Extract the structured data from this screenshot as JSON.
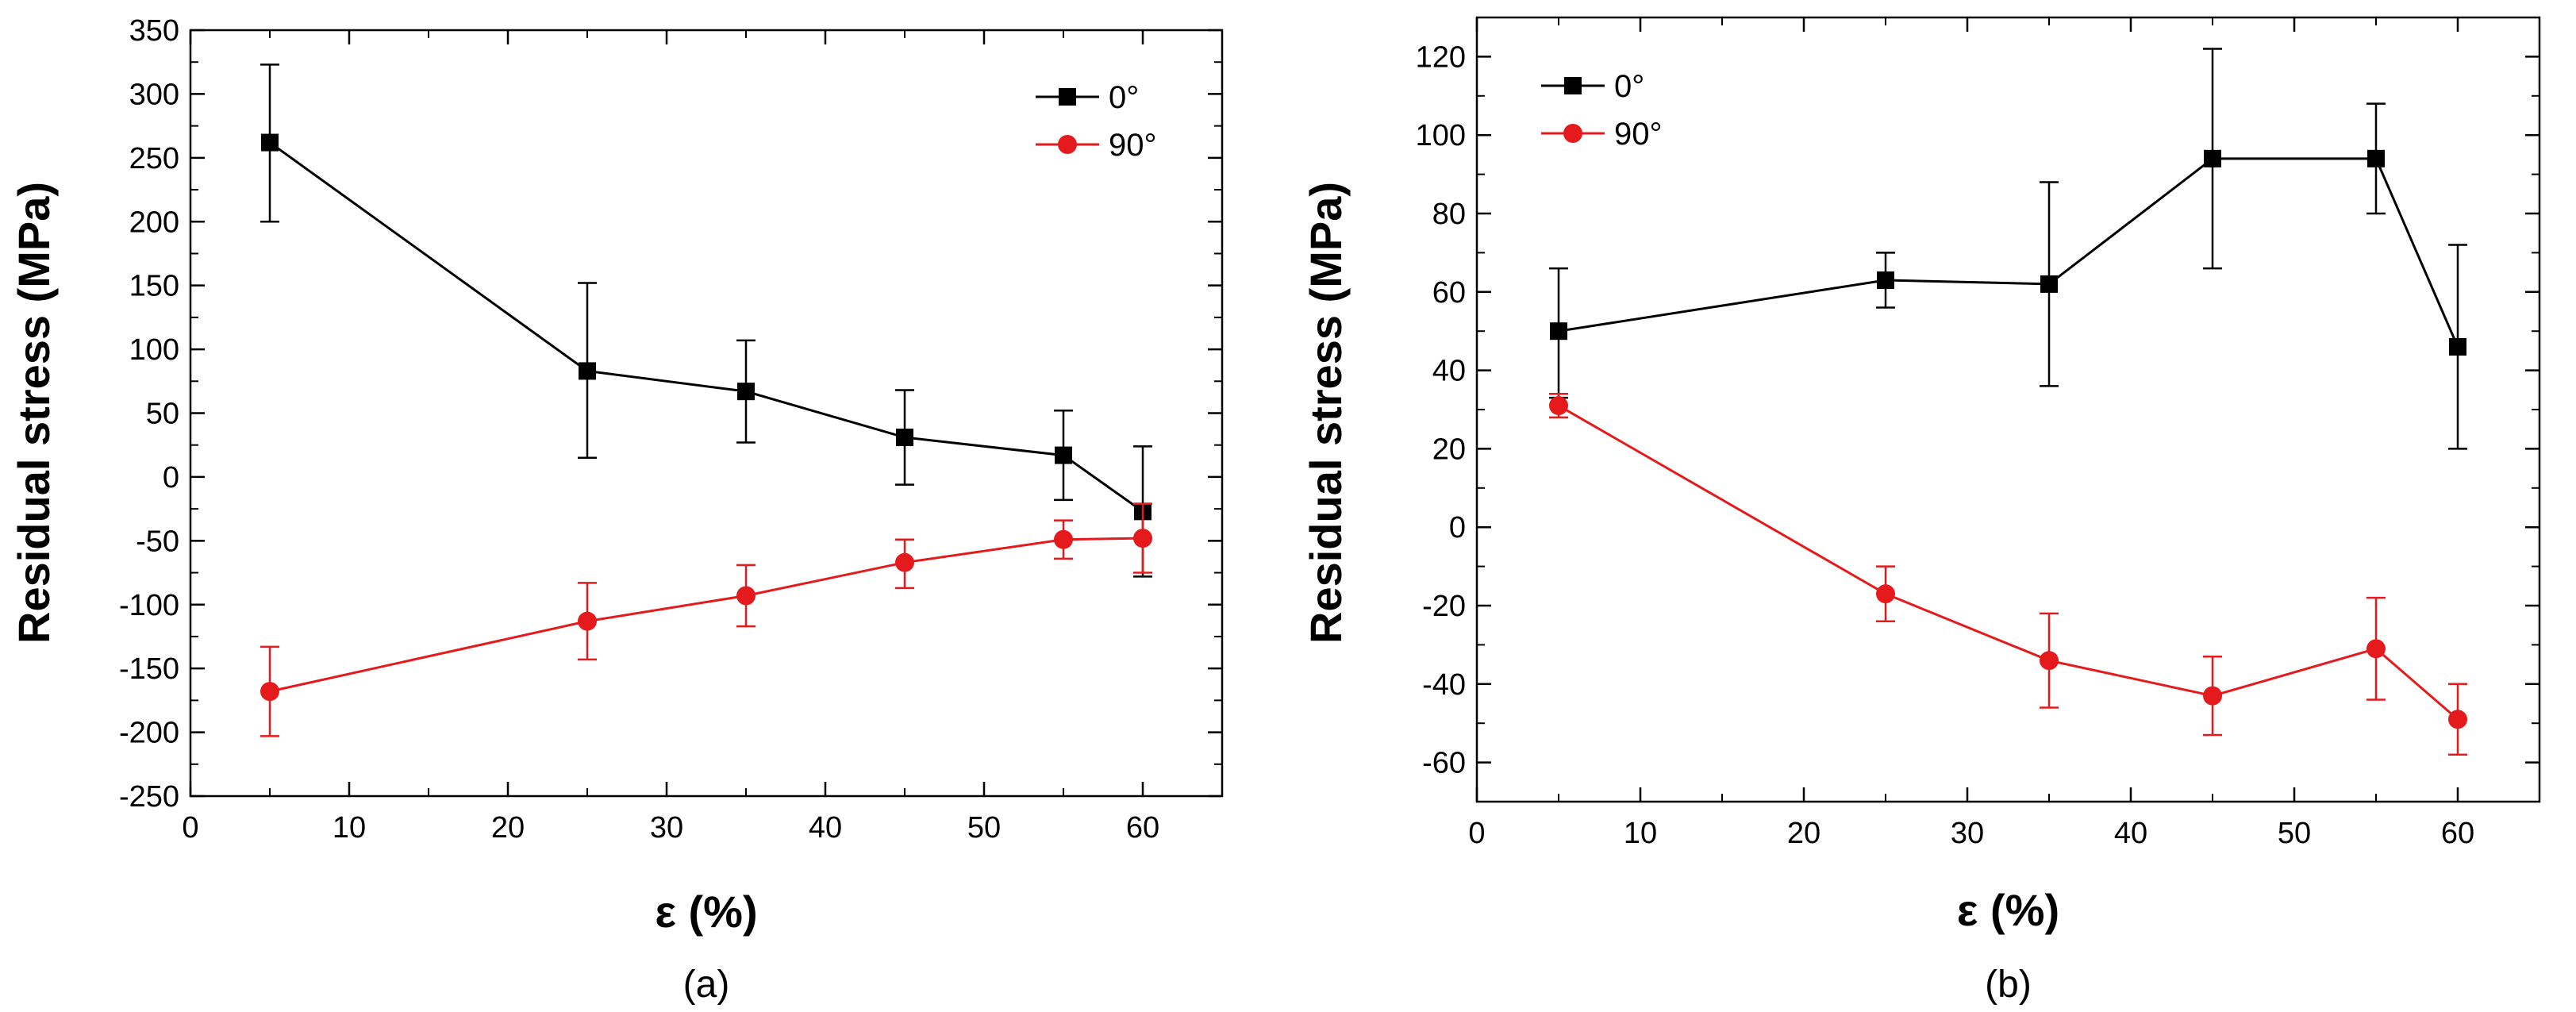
{
  "chart_data": [
    {
      "type": "line",
      "panel_label": "(a)",
      "xlabel": "ε (%)",
      "ylabel": "Residual stress (MPa)",
      "xlim": [
        0,
        65
      ],
      "ylim": [
        -250,
        350
      ],
      "xticks": [
        0,
        10,
        20,
        30,
        40,
        50,
        60
      ],
      "yticks": [
        -250,
        -200,
        -150,
        -100,
        -50,
        0,
        50,
        100,
        150,
        200,
        250,
        300,
        350
      ],
      "legend_position": "top-right",
      "x": [
        5,
        25,
        35,
        45,
        55,
        60
      ],
      "series": [
        {
          "name": "0°",
          "color": "#000000",
          "marker": "square",
          "values": [
            262,
            83,
            67,
            31,
            17,
            -27
          ],
          "err_low": [
            200,
            15,
            27,
            -6,
            -18,
            -78
          ],
          "err_high": [
            323,
            152,
            107,
            68,
            52,
            24
          ]
        },
        {
          "name": "90°",
          "color": "#e41a1c",
          "marker": "circle",
          "values": [
            -168,
            -113,
            -93,
            -67,
            -49,
            -48
          ],
          "err_low": [
            -203,
            -143,
            -117,
            -87,
            -64,
            -75
          ],
          "err_high": [
            -133,
            -83,
            -69,
            -49,
            -34,
            -21
          ]
        }
      ]
    },
    {
      "type": "line",
      "panel_label": "(b)",
      "xlabel": "ε (%)",
      "ylabel": "Residual stress (MPa)",
      "xlim": [
        0,
        65
      ],
      "ylim": [
        -70,
        130
      ],
      "xticks": [
        0,
        10,
        20,
        30,
        40,
        50,
        60
      ],
      "yticks": [
        -60,
        -40,
        -20,
        0,
        20,
        40,
        60,
        80,
        100,
        120
      ],
      "legend_position": "top-left",
      "x": [
        5,
        25,
        35,
        45,
        55,
        60
      ],
      "series": [
        {
          "name": "0°",
          "color": "#000000",
          "marker": "square",
          "values": [
            50,
            63,
            62,
            94,
            94,
            46
          ],
          "err_low": [
            33,
            56,
            36,
            66,
            80,
            20
          ],
          "err_high": [
            66,
            70,
            88,
            122,
            108,
            72
          ]
        },
        {
          "name": "90°",
          "color": "#e41a1c",
          "marker": "circle",
          "values": [
            31,
            -17,
            -34,
            -43,
            -31,
            -49
          ],
          "err_low": [
            28,
            -24,
            -46,
            -53,
            -44,
            -58
          ],
          "err_high": [
            34,
            -10,
            -22,
            -33,
            -18,
            -40
          ]
        }
      ]
    }
  ]
}
